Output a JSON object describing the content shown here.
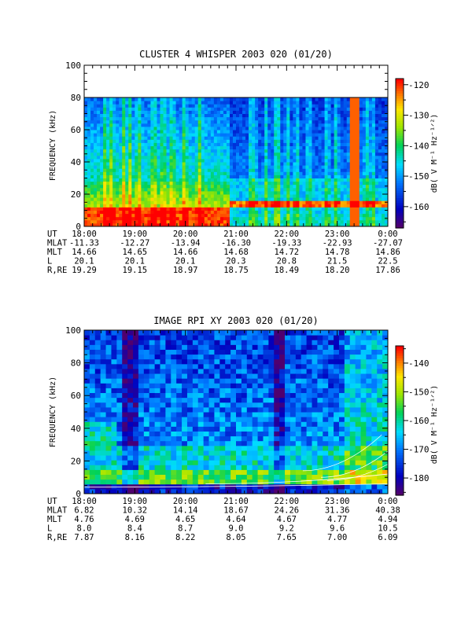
{
  "chart_data": [
    {
      "type": "heatmap",
      "title": "CLUSTER 4 WHISPER 2003 020 (01/20)",
      "ylabel": "FREQUENCY (kHz)",
      "ylim": [
        0,
        100
      ],
      "yticks": [
        "0",
        "20",
        "40",
        "60",
        "80",
        "100"
      ],
      "data_top_khz": 80,
      "colorbar": {
        "label": "dB( V M⁻¹ Hz⁻¹ᐟ²)",
        "label_plain": "dB( V M-1 Hz-1/2)",
        "range": [
          -167,
          -118
        ],
        "ticks": [
          "-120",
          "-130",
          "-140",
          "-150",
          "-160"
        ]
      },
      "ephemeris": {
        "rows": [
          {
            "name": "UT",
            "values": [
              "18:00",
              "19:00",
              "20:00",
              "21:00",
              "22:00",
              "23:00",
              "0:00"
            ]
          },
          {
            "name": "MLAT",
            "values": [
              "-11.33",
              "-12.27",
              "-13.94",
              "-16.30",
              "-19.33",
              "-22.93",
              "-27.07"
            ]
          },
          {
            "name": "MLT",
            "values": [
              "14.66",
              "14.65",
              "14.66",
              "14.68",
              "14.72",
              "14.78",
              "14.86"
            ]
          },
          {
            "name": "L",
            "values": [
              "20.1",
              "20.1",
              "20.1",
              "20.3",
              "20.8",
              "21.5",
              "22.5"
            ]
          },
          {
            "name": "R,RE",
            "values": [
              "19.29",
              "19.15",
              "18.97",
              "18.75",
              "18.49",
              "18.20",
              "17.86"
            ]
          }
        ]
      }
    },
    {
      "type": "heatmap",
      "title": "IMAGE RPI XY 2003 020 (01/20)",
      "ylabel": "FREQUENCY (kHz)",
      "ylim": [
        0,
        100
      ],
      "yticks": [
        "0",
        "20",
        "40",
        "60",
        "80",
        "100"
      ],
      "colorbar": {
        "label": "dB( V M⁻¹ Hz⁻¹ᐟ²)",
        "label_plain": "dB( V M-1 Hz-1/2)",
        "range": [
          -186,
          -134
        ],
        "ticks": [
          "-140",
          "-150",
          "-160",
          "-170",
          "-180"
        ]
      },
      "ephemeris": {
        "rows": [
          {
            "name": "UT",
            "values": [
              "18:00",
              "19:00",
              "20:00",
              "21:00",
              "22:00",
              "23:00",
              "0:00"
            ]
          },
          {
            "name": "MLAT",
            "values": [
              "6.82",
              "10.32",
              "14.14",
              "18.67",
              "24.26",
              "31.36",
              "40.38"
            ]
          },
          {
            "name": "MLT",
            "values": [
              "4.76",
              "4.69",
              "4.65",
              "4.64",
              "4.67",
              "4.77",
              "4.94"
            ]
          },
          {
            "name": "L",
            "values": [
              "8.0",
              "8.4",
              "8.7",
              "9.0",
              "9.2",
              "9.6",
              "10.5"
            ]
          },
          {
            "name": "R,RE",
            "values": [
              "7.87",
              "8.16",
              "8.22",
              "8.05",
              "7.65",
              "7.00",
              "6.09"
            ]
          }
        ]
      }
    }
  ]
}
